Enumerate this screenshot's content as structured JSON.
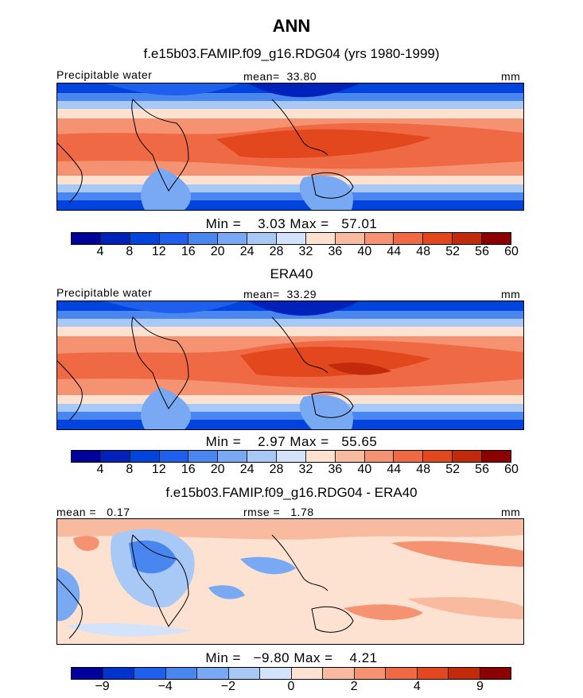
{
  "chart_data": [
    {
      "type": "heatmap",
      "title": "ANN",
      "subtitle": "f.e15b03.FAMIP.f09_g16.RDG04 (yrs 1980-1999)",
      "variable": "Precipitable water",
      "mean_label": "mean=",
      "mean": "33.80",
      "units": "mm",
      "min_label": "Min =",
      "min": "3.03",
      "max_label": "Max =",
      "max": "57.01",
      "colorbar": {
        "ticks": [
          "4",
          "8",
          "12",
          "16",
          "20",
          "24",
          "28",
          "32",
          "36",
          "40",
          "44",
          "48",
          "52",
          "56",
          "60"
        ],
        "colors": [
          "#00009a",
          "#0022bb",
          "#0044dd",
          "#1f5fee",
          "#4a86f0",
          "#7aa9f3",
          "#a8c8f6",
          "#d2e3fb",
          "#fde1d1",
          "#f9bba0",
          "#f49272",
          "#ef6a44",
          "#e2471e",
          "#c22a0c",
          "#8b0000"
        ]
      }
    },
    {
      "type": "heatmap",
      "subtitle": "ERA40",
      "variable": "Precipitable water",
      "mean_label": "mean=",
      "mean": "33.29",
      "units": "mm",
      "min_label": "Min =",
      "min": "2.97",
      "max_label": "Max =",
      "max": "55.65",
      "colorbar": {
        "ticks": [
          "4",
          "8",
          "12",
          "16",
          "20",
          "24",
          "28",
          "32",
          "36",
          "40",
          "44",
          "48",
          "52",
          "56",
          "60"
        ],
        "colors": [
          "#00009a",
          "#0022bb",
          "#0044dd",
          "#1f5fee",
          "#4a86f0",
          "#7aa9f3",
          "#a8c8f6",
          "#d2e3fb",
          "#fde1d1",
          "#f9bba0",
          "#f49272",
          "#ef6a44",
          "#e2471e",
          "#c22a0c",
          "#8b0000"
        ]
      }
    },
    {
      "type": "heatmap",
      "subtitle": "f.e15b03.FAMIP.f09_g16.RDG04 - ERA40",
      "mean_label": "mean =",
      "mean": "0.17",
      "rmse_label": "rmse =",
      "rmse": "1.78",
      "units": "mm",
      "min_label": "Min =",
      "min": "−9.80",
      "max_label": "Max =",
      "max": "4.21",
      "colorbar": {
        "ticks": [
          "−9",
          "−4",
          "−2",
          "0",
          "2",
          "4",
          "9"
        ],
        "colors": [
          "#00009a",
          "#0033cc",
          "#1f5fee",
          "#4a86f0",
          "#7aa9f3",
          "#a8c8f6",
          "#d2e3fb",
          "#fde1d1",
          "#f9bba0",
          "#f49272",
          "#ef6a44",
          "#e2471e",
          "#c22a0c",
          "#8b0000"
        ]
      }
    }
  ]
}
